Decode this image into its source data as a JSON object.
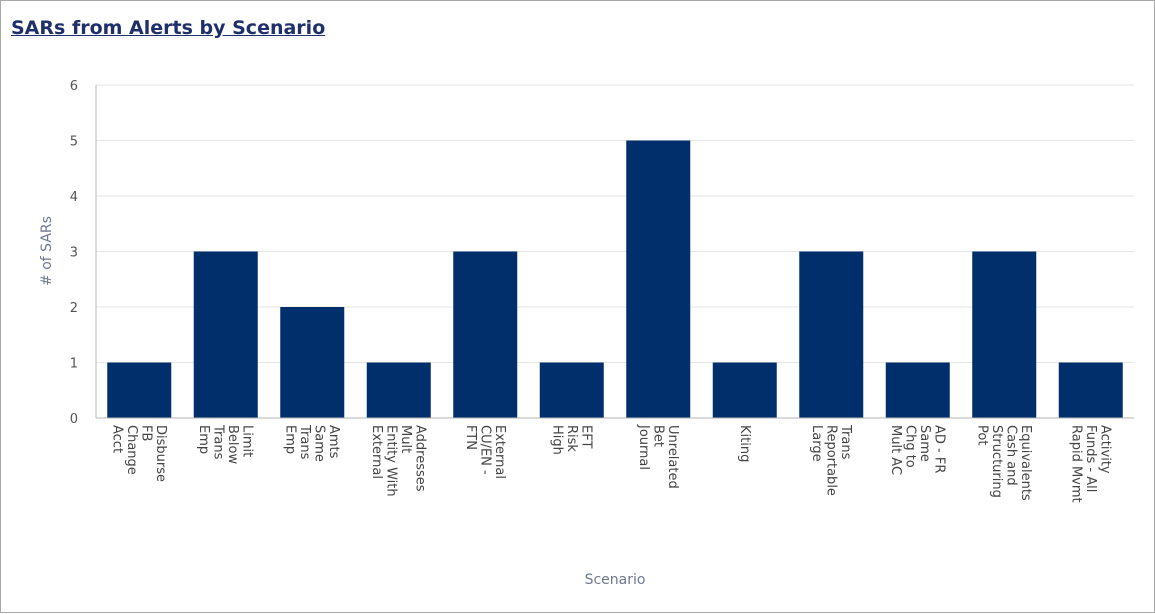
{
  "chart_data": {
    "type": "bar",
    "title": "SARs from Alerts by Scenario",
    "xlabel": "Scenario",
    "ylabel": "# of SARs",
    "ylim": [
      0,
      6
    ],
    "yticks": [
      0,
      1,
      2,
      3,
      4,
      5,
      6
    ],
    "grid": true,
    "bar_color": "#002f6c",
    "categories": [
      [
        "Acct",
        "Change",
        "FB",
        "Disburse"
      ],
      [
        "Emp",
        "Trans",
        "Below",
        "Limit"
      ],
      [
        "Emp",
        "Trans",
        "Same",
        "Amts"
      ],
      [
        "External",
        "Entity With",
        "Mult",
        "Addresses"
      ],
      [
        "FTN",
        "CU/EN -",
        "External"
      ],
      [
        "High",
        "Risk",
        "EFT"
      ],
      [
        "Journal",
        "Bet",
        "Unrelated"
      ],
      [
        "Kiting"
      ],
      [
        "Large",
        "Reportable",
        "Trans"
      ],
      [
        "Mult AC",
        "Chg to",
        "Same",
        "AD - FR"
      ],
      [
        "Pot",
        "Structuring",
        "Cash and",
        "Equivalents"
      ],
      [
        "Rapid Mvmt",
        "Funds - All",
        "Activity"
      ]
    ],
    "values": [
      1,
      3,
      2,
      1,
      3,
      1,
      5,
      1,
      3,
      1,
      3,
      1
    ]
  }
}
